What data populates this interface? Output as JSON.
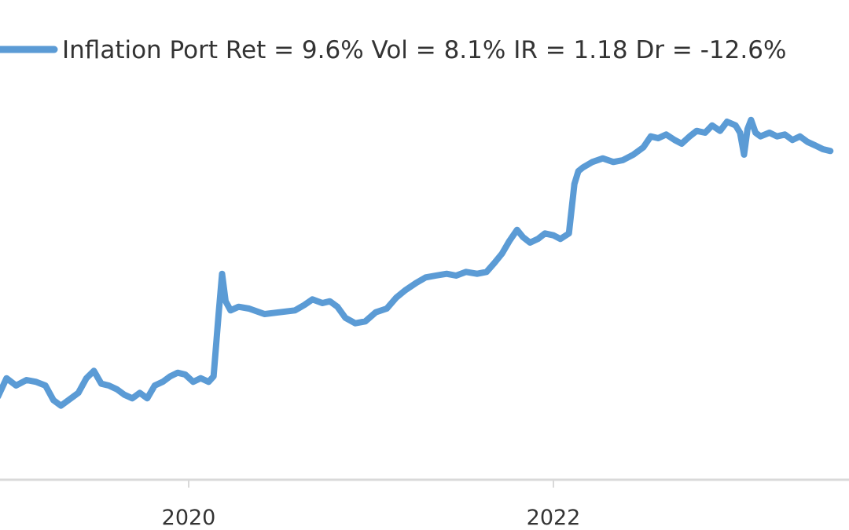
{
  "chart_data": {
    "type": "line",
    "title": "",
    "xlabel": "",
    "ylabel": "",
    "x_tick_labels": [
      "2020",
      "2022"
    ],
    "grid": false,
    "legend_position": "top-left",
    "colors": {
      "series": "#5b9bd5",
      "axis": "#d9d9d9",
      "text": "#333333"
    },
    "series": [
      {
        "name": "Inflation Port Ret = 9.6% Vol = 8.1% IR = 1.18 Dr = -12.6%",
        "points": [
          [
            "2018-12-15",
            0.0
          ],
          [
            "2019-01-01",
            1.0
          ],
          [
            "2019-01-20",
            0.6
          ],
          [
            "2019-02-10",
            0.9
          ],
          [
            "2019-03-01",
            0.8
          ],
          [
            "2019-03-20",
            0.6
          ],
          [
            "2019-04-05",
            -0.2
          ],
          [
            "2019-04-20",
            -0.5
          ],
          [
            "2019-05-05",
            -0.2
          ],
          [
            "2019-05-25",
            0.2
          ],
          [
            "2019-06-10",
            1.0
          ],
          [
            "2019-06-25",
            1.4
          ],
          [
            "2019-07-10",
            0.7
          ],
          [
            "2019-07-25",
            0.6
          ],
          [
            "2019-08-10",
            0.4
          ],
          [
            "2019-08-25",
            0.1
          ],
          [
            "2019-09-10",
            -0.1
          ],
          [
            "2019-09-25",
            0.2
          ],
          [
            "2019-10-10",
            -0.1
          ],
          [
            "2019-10-25",
            0.6
          ],
          [
            "2019-11-10",
            0.8
          ],
          [
            "2019-11-25",
            1.1
          ],
          [
            "2019-12-10",
            1.3
          ],
          [
            "2019-12-25",
            1.2
          ],
          [
            "2020-01-10",
            0.8
          ],
          [
            "2020-01-25",
            1.0
          ],
          [
            "2020-02-10",
            0.8
          ],
          [
            "2020-02-20",
            1.1
          ],
          [
            "2020-03-01",
            4.5
          ],
          [
            "2020-03-08",
            6.7
          ],
          [
            "2020-03-15",
            5.2
          ],
          [
            "2020-03-25",
            4.7
          ],
          [
            "2020-04-10",
            4.9
          ],
          [
            "2020-05-01",
            4.8
          ],
          [
            "2020-06-01",
            4.5
          ],
          [
            "2020-07-01",
            4.6
          ],
          [
            "2020-08-01",
            4.7
          ],
          [
            "2020-08-20",
            5.0
          ],
          [
            "2020-09-05",
            5.3
          ],
          [
            "2020-09-25",
            5.1
          ],
          [
            "2020-10-10",
            5.2
          ],
          [
            "2020-10-25",
            4.9
          ],
          [
            "2020-11-10",
            4.3
          ],
          [
            "2020-11-30",
            4.0
          ],
          [
            "2020-12-20",
            4.1
          ],
          [
            "2021-01-10",
            4.6
          ],
          [
            "2021-02-01",
            4.8
          ],
          [
            "2021-02-20",
            5.4
          ],
          [
            "2021-03-10",
            5.8
          ],
          [
            "2021-04-01",
            6.2
          ],
          [
            "2021-04-20",
            6.5
          ],
          [
            "2021-05-10",
            6.6
          ],
          [
            "2021-06-01",
            6.7
          ],
          [
            "2021-06-20",
            6.6
          ],
          [
            "2021-07-10",
            6.8
          ],
          [
            "2021-08-01",
            6.7
          ],
          [
            "2021-08-20",
            6.8
          ],
          [
            "2021-09-05",
            7.3
          ],
          [
            "2021-09-20",
            7.8
          ],
          [
            "2021-10-05",
            8.5
          ],
          [
            "2021-10-20",
            9.1
          ],
          [
            "2021-11-01",
            8.7
          ],
          [
            "2021-11-15",
            8.4
          ],
          [
            "2021-12-01",
            8.6
          ],
          [
            "2021-12-15",
            8.9
          ],
          [
            "2022-01-01",
            8.8
          ],
          [
            "2022-01-15",
            8.6
          ],
          [
            "2022-02-01",
            8.9
          ],
          [
            "2022-02-12",
            11.6
          ],
          [
            "2022-02-20",
            12.3
          ],
          [
            "2022-03-01",
            12.5
          ],
          [
            "2022-03-20",
            12.8
          ],
          [
            "2022-04-10",
            13.0
          ],
          [
            "2022-05-01",
            12.8
          ],
          [
            "2022-05-20",
            12.9
          ],
          [
            "2022-06-10",
            13.2
          ],
          [
            "2022-06-30",
            13.6
          ],
          [
            "2022-07-15",
            14.2
          ],
          [
            "2022-07-30",
            14.1
          ],
          [
            "2022-08-15",
            14.3
          ],
          [
            "2022-09-01",
            14.0
          ],
          [
            "2022-09-15",
            13.8
          ],
          [
            "2022-10-01",
            14.2
          ],
          [
            "2022-10-15",
            14.5
          ],
          [
            "2022-11-01",
            14.4
          ],
          [
            "2022-11-15",
            14.8
          ],
          [
            "2022-12-01",
            14.5
          ],
          [
            "2022-12-15",
            15.0
          ],
          [
            "2023-01-01",
            14.8
          ],
          [
            "2023-01-10",
            14.4
          ],
          [
            "2023-01-18",
            13.2
          ],
          [
            "2023-01-25",
            14.6
          ],
          [
            "2023-02-01",
            15.1
          ],
          [
            "2023-02-10",
            14.4
          ],
          [
            "2023-02-20",
            14.2
          ],
          [
            "2023-03-10",
            14.4
          ],
          [
            "2023-03-25",
            14.2
          ],
          [
            "2023-04-10",
            14.3
          ],
          [
            "2023-04-25",
            14.0
          ],
          [
            "2023-05-10",
            14.2
          ],
          [
            "2023-05-25",
            13.9
          ],
          [
            "2023-06-10",
            13.7
          ],
          [
            "2023-06-25",
            13.5
          ],
          [
            "2023-07-10",
            13.4
          ]
        ]
      }
    ]
  }
}
